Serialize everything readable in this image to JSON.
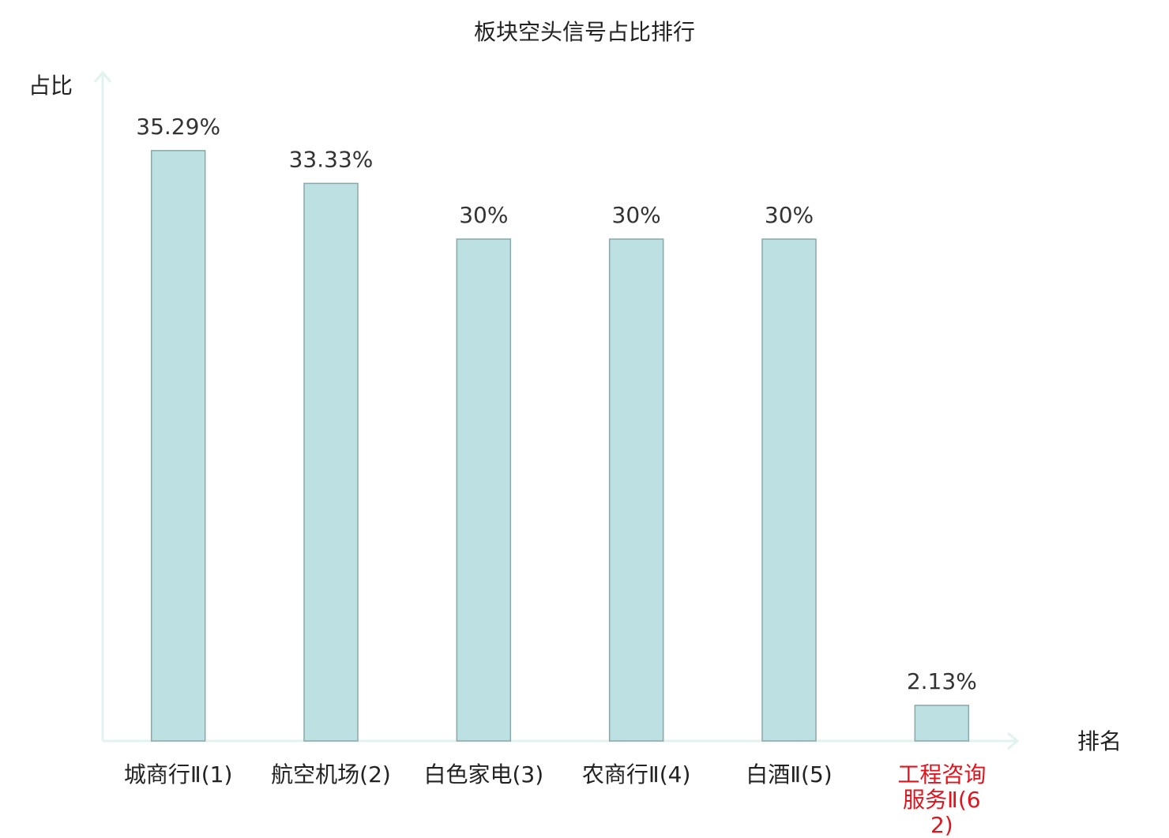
{
  "chart_data": {
    "type": "bar",
    "title": "板块空头信号占比排行",
    "y_label": "占比",
    "x_label": "排名",
    "categories": [
      "城商行Ⅱ(1)",
      "航空机场(2)",
      "白色家电(3)",
      "农商行Ⅱ(4)",
      "白酒Ⅱ(5)",
      "工程咨询服务Ⅱ(62)"
    ],
    "values": [
      35.29,
      33.33,
      30,
      30,
      30,
      2.13
    ],
    "value_labels": [
      "35.29%",
      "33.33%",
      "30%",
      "30%",
      "30%",
      "2.13%"
    ],
    "color": "#bde1e3",
    "highlight_index": 5,
    "highlight_color": "#e0141e",
    "ylim": [
      0,
      40
    ]
  }
}
